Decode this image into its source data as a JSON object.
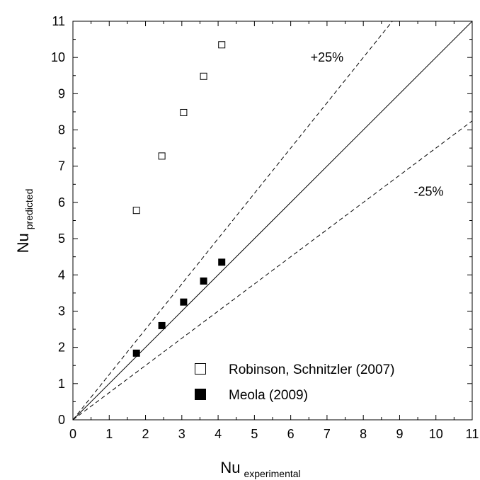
{
  "chart_data": {
    "type": "scatter",
    "xlabel": {
      "main": "Nu",
      "sub": "experimental"
    },
    "ylabel": {
      "main": "Nu",
      "sub": "predicted"
    },
    "xlim": [
      0,
      11
    ],
    "ylim": [
      0,
      11
    ],
    "xticks": [
      "0",
      "1",
      "2",
      "3",
      "4",
      "5",
      "6",
      "7",
      "8",
      "9",
      "10",
      "11"
    ],
    "yticks": [
      "0",
      "1",
      "2",
      "3",
      "4",
      "5",
      "6",
      "7",
      "8",
      "9",
      "10",
      "11"
    ],
    "grid": false,
    "reference_lines": [
      {
        "kind": "solid",
        "slope": 1.0
      },
      {
        "kind": "dashed",
        "slope": 1.25
      },
      {
        "kind": "dashed",
        "slope": 0.75
      }
    ],
    "annotations": [
      {
        "text": "+25%",
        "x": 7.0,
        "y": 10.0
      },
      {
        "text": "-25%",
        "x": 9.8,
        "y": 6.3
      }
    ],
    "series": [
      {
        "name": "Robinson, Schnitzler (2007)",
        "marker": "open-square",
        "x": [
          1.75,
          2.45,
          3.05,
          3.6,
          4.1
        ],
        "y": [
          5.78,
          7.28,
          8.48,
          9.48,
          10.35
        ]
      },
      {
        "name": "Meola (2009)",
        "marker": "filled-square",
        "x": [
          1.75,
          2.45,
          3.05,
          3.6,
          4.1
        ],
        "y": [
          1.84,
          2.6,
          3.25,
          3.83,
          4.35
        ]
      }
    ],
    "legend_position": "bottom-right"
  },
  "colors": {
    "ink": "#000000",
    "background": "#ffffff"
  }
}
